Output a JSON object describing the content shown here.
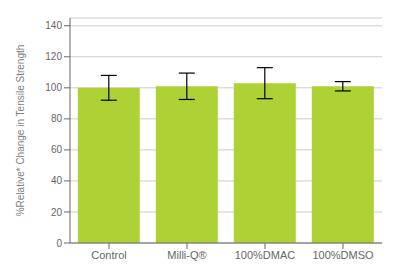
{
  "chart_data": {
    "type": "bar",
    "categories": [
      "Control",
      "Milli-Q®",
      "100%DMAC",
      "100%DMSO"
    ],
    "values": [
      100.0,
      101.0,
      103.0,
      101.0
    ],
    "errors": [
      8.0,
      8.5,
      10.0,
      3.0
    ],
    "color": "#aed136",
    "ylabel": "%Relative* Change in Tensile Strength",
    "ylim": [
      0,
      145
    ],
    "yticks": [
      0,
      20,
      40,
      60,
      80,
      100,
      120,
      140
    ],
    "grid": true
  }
}
